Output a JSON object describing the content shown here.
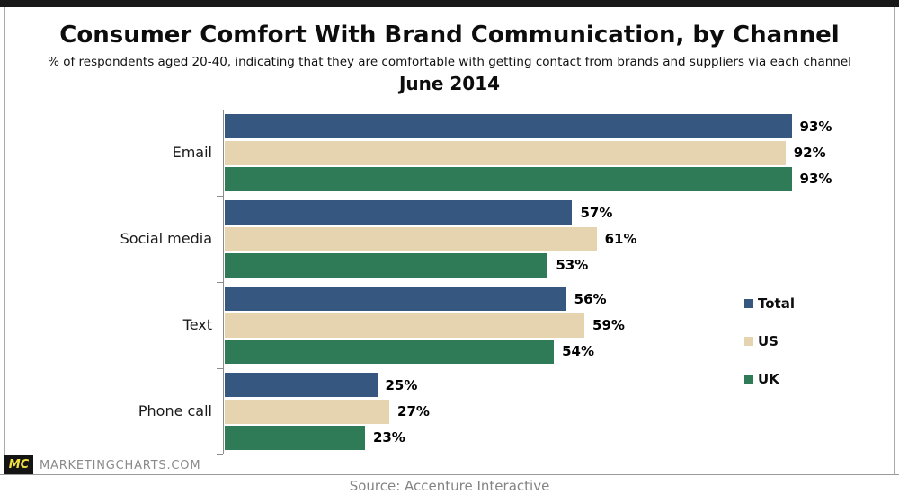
{
  "chart_data": {
    "type": "bar",
    "orientation": "horizontal",
    "title": "Consumer Comfort With Brand Communication, by Channel",
    "subtitle": "% of respondents aged 20-40, indicating that they are comfortable with getting contact from brands and suppliers via each channel",
    "date_label": "June 2014",
    "categories": [
      "Email",
      "Social media",
      "Text",
      "Phone call"
    ],
    "series": [
      {
        "name": "Total",
        "color": "#365880",
        "values": [
          93,
          57,
          56,
          25
        ]
      },
      {
        "name": "US",
        "color": "#e6d3af",
        "values": [
          92,
          61,
          59,
          27
        ]
      },
      {
        "name": "UK",
        "color": "#2f7b57",
        "values": [
          93,
          53,
          54,
          23
        ]
      }
    ],
    "value_suffix": "%",
    "xlim": [
      0,
      100
    ],
    "grid": false,
    "legend_position": "right",
    "value_labels": true
  },
  "footer": {
    "logo_text": "MC",
    "logo_bg_color": "#141414",
    "logo_text_color": "#f0e040",
    "site_text": "MARKETINGCHARTS.COM",
    "source": "Source: Accenture Interactive"
  }
}
